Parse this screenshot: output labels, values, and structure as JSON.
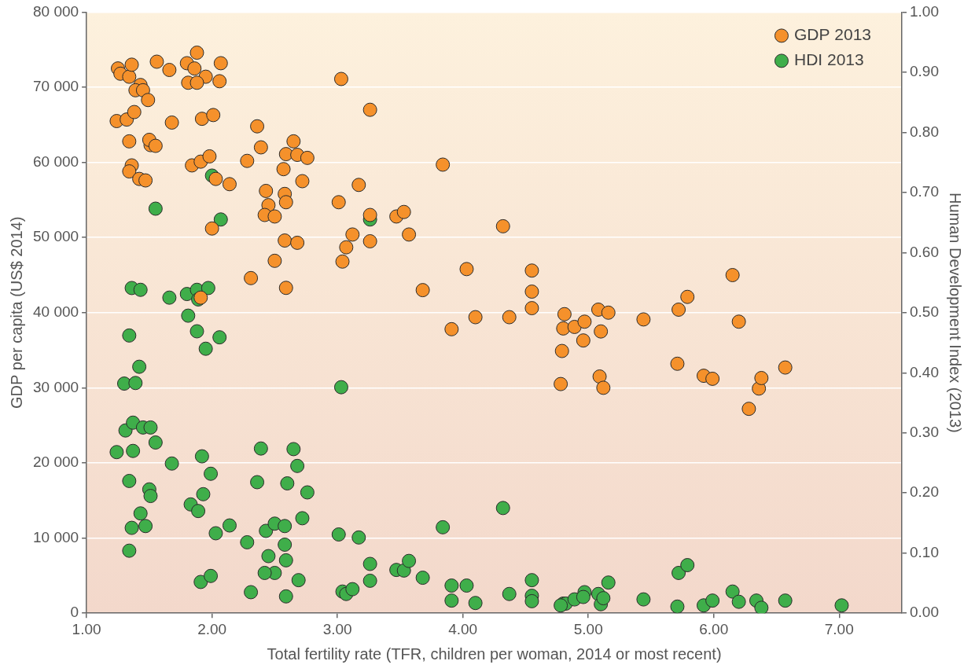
{
  "chart_data": {
    "type": "scatter",
    "x_label": "Total fertility rate (TFR, children per woman, 2014 or most recent)",
    "y_label": "GDP per capita (US$ 2014)",
    "y2_label": "Human Development Index (2013)",
    "xlim": [
      1,
      7.5
    ],
    "xticks": [
      {
        "value": 1,
        "label": "1.00"
      },
      {
        "value": 2,
        "label": "2.00"
      },
      {
        "value": 3,
        "label": "3.00"
      },
      {
        "value": 4,
        "label": "4.00"
      },
      {
        "value": 5,
        "label": "5.00"
      },
      {
        "value": 6,
        "label": "6.00"
      },
      {
        "value": 7,
        "label": "7.00"
      }
    ],
    "ylim": [
      0,
      80000
    ],
    "yticks": [
      0,
      {
        "value": 10000,
        "label": "10 000"
      },
      {
        "value": 20000,
        "label": "20 000"
      },
      {
        "value": 30000,
        "label": "30 000"
      },
      {
        "value": 40000,
        "label": "40 000"
      },
      {
        "value": 50000,
        "label": "50 000"
      },
      {
        "value": 60000,
        "label": "60 000"
      },
      {
        "value": 70000,
        "label": "70 000"
      },
      {
        "value": 80000,
        "label": "80 000"
      }
    ],
    "y2lim": [
      0,
      1
    ],
    "y2ticks": [
      {
        "value": 0,
        "label": "0.00"
      },
      {
        "value": 0.1,
        "label": "0.10"
      },
      {
        "value": 0.2,
        "label": "0.20"
      },
      {
        "value": 0.3,
        "label": "0.30"
      },
      {
        "value": 0.4,
        "label": "0.40"
      },
      {
        "value": 0.5,
        "label": "0.50"
      },
      {
        "value": 0.6,
        "label": "0.60"
      },
      {
        "value": 0.7,
        "label": "0.70"
      },
      {
        "value": 0.8,
        "label": "0.80"
      },
      {
        "value": 0.9,
        "label": "0.90"
      },
      {
        "value": 1,
        "label": "1.00"
      }
    ],
    "grid": true,
    "legend": "upper right",
    "series": [
      {
        "name": "GDP 2013",
        "color": "#f5912b",
        "marker": "circle",
        "x": [
          1.25,
          1.27,
          1.34,
          1.36,
          1.43,
          1.39,
          1.45,
          1.49,
          1.24,
          1.32,
          1.38,
          1.34,
          1.36,
          1.34,
          1.42,
          1.47,
          1.51,
          1.5,
          1.55,
          1.56,
          1.66,
          1.68,
          1.8,
          1.88,
          1.86,
          1.95,
          1.81,
          1.88,
          2.07,
          2.06,
          1.92,
          2.01,
          1.84,
          1.91,
          1.98,
          2.03,
          2.14,
          2.0,
          1.91,
          2.28,
          2.36,
          2.39,
          2.43,
          2.45,
          2.42,
          2.5,
          2.5,
          2.31,
          2.57,
          2.59,
          2.58,
          2.59,
          2.65,
          2.68,
          2.76,
          2.72,
          2.58,
          2.68,
          2.59,
          3.03,
          3.26,
          3.01,
          3.04,
          3.07,
          3.12,
          3.17,
          3.26,
          3.26,
          3.47,
          3.53,
          3.57,
          3.68,
          3.84,
          3.91,
          4.03,
          4.1,
          4.32,
          4.37,
          4.55,
          4.55,
          4.55,
          4.81,
          4.8,
          4.89,
          4.97,
          4.79,
          4.96,
          4.78,
          5.08,
          5.16,
          5.1,
          5.09,
          5.12,
          5.44,
          5.72,
          5.79,
          5.71,
          5.92,
          5.99,
          6.15,
          6.2,
          6.36,
          6.38,
          6.28,
          6.57
        ],
        "values": [
          72500,
          71800,
          71400,
          73000,
          70300,
          69600,
          69600,
          68300,
          65500,
          65700,
          66700,
          62800,
          59600,
          58800,
          57800,
          57600,
          62300,
          63000,
          62200,
          73400,
          72300,
          65300,
          73200,
          74600,
          72500,
          71400,
          70600,
          70600,
          73200,
          70800,
          65800,
          66300,
          59600,
          60100,
          60800,
          57800,
          57100,
          51200,
          42000,
          60200,
          64800,
          62000,
          56200,
          54300,
          53000,
          52800,
          46900,
          44600,
          59100,
          61100,
          55800,
          54700,
          62800,
          61000,
          60600,
          57500,
          49600,
          49300,
          43300,
          71100,
          67000,
          54700,
          46800,
          48700,
          50400,
          57000,
          53000,
          49500,
          52800,
          53400,
          50400,
          43000,
          59700,
          37800,
          45800,
          39400,
          51500,
          39400,
          45600,
          42800,
          40600,
          39800,
          37900,
          38100,
          38800,
          34900,
          36300,
          30500,
          40400,
          40000,
          37500,
          31500,
          30000,
          39100,
          40400,
          42100,
          33200,
          31600,
          31200,
          45000,
          38800,
          29900,
          31300,
          27200,
          32700
        ]
      },
      {
        "name": "HDI 2013",
        "color": "#3fae4a",
        "marker": "circle",
        "axis": "y2",
        "x": [
          1.55,
          2.0,
          2.07,
          3.26,
          1.36,
          1.43,
          1.66,
          1.8,
          1.88,
          1.97,
          1.89,
          1.81,
          1.88,
          2.06,
          1.95,
          1.34,
          1.42,
          1.3,
          1.39,
          3.03,
          1.31,
          1.37,
          1.45,
          1.51,
          1.55,
          1.24,
          1.37,
          1.68,
          1.92,
          1.99,
          1.34,
          1.5,
          1.51,
          1.83,
          1.89,
          1.93,
          1.43,
          1.36,
          1.47,
          1.34,
          2.39,
          2.36,
          2.65,
          2.68,
          2.6,
          2.76,
          2.72,
          2.14,
          2.03,
          2.28,
          2.43,
          2.5,
          2.58,
          2.58,
          2.45,
          2.59,
          2.59,
          2.5,
          2.42,
          2.31,
          2.69,
          1.91,
          1.99,
          3.01,
          3.17,
          3.26,
          3.26,
          3.04,
          3.07,
          3.12,
          3.47,
          3.53,
          3.57,
          3.68,
          3.84,
          3.91,
          3.91,
          4.03,
          4.1,
          4.32,
          4.37,
          4.55,
          4.55,
          4.55,
          4.8,
          4.82,
          4.78,
          4.89,
          4.97,
          4.96,
          5.08,
          5.1,
          5.12,
          5.16,
          5.44,
          5.72,
          5.79,
          5.71,
          5.92,
          5.99,
          6.15,
          6.2,
          6.34,
          6.38,
          6.57,
          7.02
        ],
        "values": [
          0.673,
          0.728,
          0.655,
          0.655,
          0.541,
          0.538,
          0.525,
          0.531,
          0.538,
          0.541,
          0.522,
          0.495,
          0.469,
          0.459,
          0.44,
          0.462,
          0.41,
          0.382,
          0.383,
          0.376,
          0.304,
          0.317,
          0.309,
          0.309,
          0.284,
          0.268,
          0.27,
          0.249,
          0.261,
          0.232,
          0.22,
          0.206,
          0.195,
          0.181,
          0.17,
          0.198,
          0.166,
          0.142,
          0.145,
          0.104,
          0.274,
          0.218,
          0.273,
          0.245,
          0.216,
          0.201,
          0.158,
          0.146,
          0.133,
          0.118,
          0.137,
          0.149,
          0.145,
          0.114,
          0.095,
          0.088,
          0.028,
          0.067,
          0.067,
          0.035,
          0.055,
          0.052,
          0.062,
          0.131,
          0.126,
          0.082,
          0.054,
          0.036,
          0.032,
          0.04,
          0.072,
          0.071,
          0.087,
          0.059,
          0.143,
          0.046,
          0.021,
          0.046,
          0.017,
          0.175,
          0.032,
          0.055,
          0.029,
          0.02,
          0.016,
          0.016,
          0.013,
          0.023,
          0.035,
          0.027,
          0.032,
          0.015,
          0.025,
          0.051,
          0.023,
          0.067,
          0.08,
          0.011,
          0.013,
          0.021,
          0.036,
          0.019,
          0.021,
          0.009,
          0.021,
          0.013
        ]
      }
    ]
  }
}
